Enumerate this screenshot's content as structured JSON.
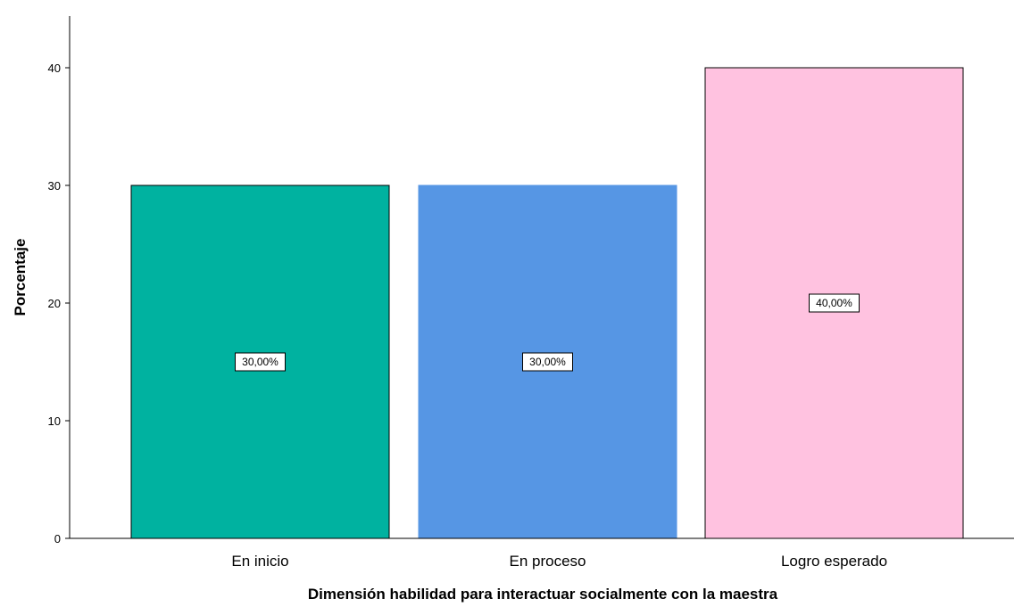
{
  "chart_data": {
    "type": "bar",
    "title": "",
    "categories": [
      "En inicio",
      "En proceso",
      "Logro esperado"
    ],
    "values": [
      30,
      30,
      40
    ],
    "data_labels": [
      "30,00%",
      "30,00%",
      "40,00%"
    ],
    "colors": [
      "#00b2a0",
      "#5696e4",
      "#ffc2e0"
    ],
    "bar_outline": [
      "#000000",
      "#5696e4",
      "#000000"
    ],
    "xlabel": "Dimensión habilidad para interactuar socialmente con la maestra",
    "ylabel": "Porcentaje",
    "yticks": [
      "0",
      "10",
      "20",
      "30",
      "40"
    ],
    "ylim": [
      0,
      44
    ],
    "grid": false,
    "legend": "none"
  }
}
